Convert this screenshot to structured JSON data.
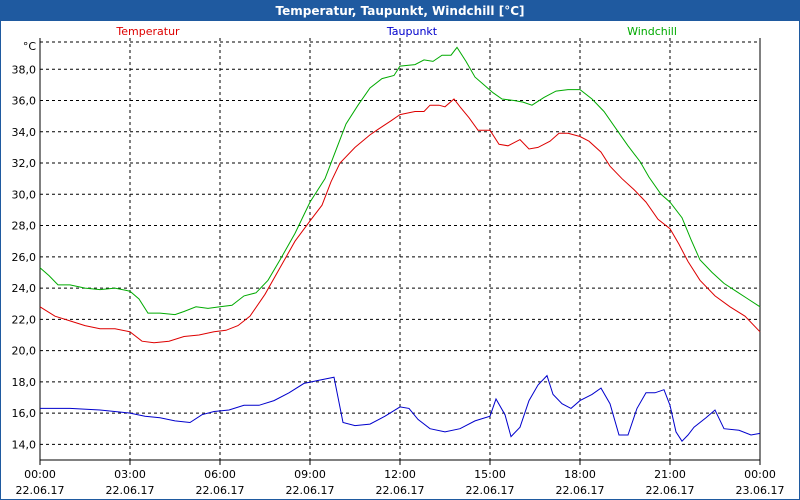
{
  "window": {
    "title": "Temperatur, Taupunkt, Windchill [°C]"
  },
  "chart_data": {
    "type": "line",
    "title": "Temperatur, Taupunkt, Windchill [°C]",
    "ylabel": "°C",
    "xlabel": "",
    "ylim": [
      13,
      40
    ],
    "xlim": [
      0,
      24
    ],
    "grid": true,
    "legend_position": "top",
    "yticks": [
      14,
      16,
      18,
      20,
      22,
      24,
      26,
      28,
      30,
      32,
      34,
      36,
      38
    ],
    "ytick_labels": [
      "14,0",
      "16,0",
      "18,0",
      "20,0",
      "22,0",
      "24,0",
      "26,0",
      "28,0",
      "30,0",
      "32,0",
      "34,0",
      "36,0",
      "38,0"
    ],
    "xticks": [
      {
        "time": "00:00",
        "date": "22.06.17"
      },
      {
        "time": "03:00",
        "date": "22.06.17"
      },
      {
        "time": "06:00",
        "date": "22.06.17"
      },
      {
        "time": "09:00",
        "date": "22.06.17"
      },
      {
        "time": "12:00",
        "date": "22.06.17"
      },
      {
        "time": "15:00",
        "date": "22.06.17"
      },
      {
        "time": "18:00",
        "date": "22.06.17"
      },
      {
        "time": "21:00",
        "date": "22.06.17"
      },
      {
        "time": "00:00",
        "date": "23.06.17"
      }
    ],
    "series": [
      {
        "name": "Temperatur",
        "color": "#dd0000",
        "points": [
          [
            0,
            22.8
          ],
          [
            0.5,
            22.2
          ],
          [
            1,
            21.9
          ],
          [
            1.5,
            21.6
          ],
          [
            2,
            21.4
          ],
          [
            2.5,
            21.4
          ],
          [
            3,
            21.2
          ],
          [
            3.4,
            20.6
          ],
          [
            3.8,
            20.5
          ],
          [
            4.3,
            20.6
          ],
          [
            4.8,
            20.9
          ],
          [
            5.3,
            21.0
          ],
          [
            5.8,
            21.2
          ],
          [
            6.2,
            21.3
          ],
          [
            6.6,
            21.6
          ],
          [
            7,
            22.2
          ],
          [
            7.5,
            23.6
          ],
          [
            8,
            25.3
          ],
          [
            8.5,
            27.0
          ],
          [
            9,
            28.3
          ],
          [
            9.4,
            29.3
          ],
          [
            9.7,
            30.8
          ],
          [
            10,
            32.0
          ],
          [
            10.5,
            33.0
          ],
          [
            11,
            33.8
          ],
          [
            11.3,
            34.2
          ],
          [
            11.7,
            34.7
          ],
          [
            12,
            35.1
          ],
          [
            12.5,
            35.3
          ],
          [
            12.8,
            35.3
          ],
          [
            13,
            35.7
          ],
          [
            13.3,
            35.7
          ],
          [
            13.5,
            35.6
          ],
          [
            13.8,
            36.1
          ],
          [
            14,
            35.6
          ],
          [
            14.3,
            34.9
          ],
          [
            14.6,
            34.1
          ],
          [
            15,
            34.1
          ],
          [
            15.3,
            33.2
          ],
          [
            15.6,
            33.1
          ],
          [
            16,
            33.5
          ],
          [
            16.3,
            32.9
          ],
          [
            16.6,
            33.0
          ],
          [
            17,
            33.4
          ],
          [
            17.3,
            33.9
          ],
          [
            17.6,
            33.9
          ],
          [
            18,
            33.7
          ],
          [
            18.3,
            33.4
          ],
          [
            18.7,
            32.7
          ],
          [
            19,
            31.8
          ],
          [
            19.4,
            31.0
          ],
          [
            19.8,
            30.3
          ],
          [
            20.2,
            29.5
          ],
          [
            20.6,
            28.4
          ],
          [
            21,
            27.8
          ],
          [
            21.3,
            26.8
          ],
          [
            21.6,
            25.7
          ],
          [
            22,
            24.5
          ],
          [
            22.5,
            23.5
          ],
          [
            23,
            22.8
          ],
          [
            23.5,
            22.2
          ],
          [
            24,
            21.2
          ]
        ]
      },
      {
        "name": "Taupunkt",
        "color": "#0000cc",
        "points": [
          [
            0,
            16.3
          ],
          [
            1,
            16.3
          ],
          [
            2,
            16.2
          ],
          [
            3,
            16.0
          ],
          [
            3.5,
            15.8
          ],
          [
            4,
            15.7
          ],
          [
            4.5,
            15.5
          ],
          [
            5,
            15.4
          ],
          [
            5.4,
            15.9
          ],
          [
            5.8,
            16.1
          ],
          [
            6.3,
            16.2
          ],
          [
            6.8,
            16.5
          ],
          [
            7.3,
            16.5
          ],
          [
            7.8,
            16.8
          ],
          [
            8.3,
            17.3
          ],
          [
            8.8,
            17.9
          ],
          [
            9.3,
            18.1
          ],
          [
            9.8,
            18.3
          ],
          [
            10.1,
            15.4
          ],
          [
            10.5,
            15.2
          ],
          [
            11,
            15.3
          ],
          [
            11.5,
            15.8
          ],
          [
            12,
            16.4
          ],
          [
            12.3,
            16.3
          ],
          [
            12.6,
            15.6
          ],
          [
            13,
            15.0
          ],
          [
            13.5,
            14.8
          ],
          [
            14,
            15.0
          ],
          [
            14.5,
            15.5
          ],
          [
            15,
            15.8
          ],
          [
            15.2,
            16.9
          ],
          [
            15.5,
            15.9
          ],
          [
            15.7,
            14.5
          ],
          [
            16,
            15.1
          ],
          [
            16.3,
            16.8
          ],
          [
            16.6,
            17.8
          ],
          [
            16.9,
            18.4
          ],
          [
            17.1,
            17.2
          ],
          [
            17.4,
            16.6
          ],
          [
            17.7,
            16.3
          ],
          [
            18,
            16.8
          ],
          [
            18.4,
            17.2
          ],
          [
            18.7,
            17.6
          ],
          [
            19,
            16.6
          ],
          [
            19.3,
            14.6
          ],
          [
            19.6,
            14.6
          ],
          [
            19.9,
            16.3
          ],
          [
            20.2,
            17.3
          ],
          [
            20.5,
            17.3
          ],
          [
            20.8,
            17.5
          ],
          [
            21,
            16.5
          ],
          [
            21.2,
            14.8
          ],
          [
            21.4,
            14.2
          ],
          [
            21.6,
            14.6
          ],
          [
            21.8,
            15.1
          ],
          [
            22.2,
            15.7
          ],
          [
            22.5,
            16.2
          ],
          [
            22.8,
            15.0
          ],
          [
            23.3,
            14.9
          ],
          [
            23.7,
            14.6
          ],
          [
            24,
            14.7
          ]
        ]
      },
      {
        "name": "Windchill",
        "color": "#00aa00",
        "points": [
          [
            0,
            25.3
          ],
          [
            0.3,
            24.8
          ],
          [
            0.6,
            24.2
          ],
          [
            1,
            24.2
          ],
          [
            1.5,
            24.0
          ],
          [
            2,
            23.9
          ],
          [
            2.5,
            24.0
          ],
          [
            3,
            23.8
          ],
          [
            3.3,
            23.3
          ],
          [
            3.6,
            22.4
          ],
          [
            4,
            22.4
          ],
          [
            4.5,
            22.3
          ],
          [
            4.8,
            22.5
          ],
          [
            5.2,
            22.8
          ],
          [
            5.6,
            22.7
          ],
          [
            6,
            22.8
          ],
          [
            6.4,
            22.9
          ],
          [
            6.8,
            23.5
          ],
          [
            7.2,
            23.7
          ],
          [
            7.6,
            24.5
          ],
          [
            8,
            25.8
          ],
          [
            8.5,
            27.5
          ],
          [
            9,
            29.5
          ],
          [
            9.5,
            31.0
          ],
          [
            9.8,
            32.5
          ],
          [
            10.2,
            34.5
          ],
          [
            10.6,
            35.7
          ],
          [
            11,
            36.8
          ],
          [
            11.4,
            37.4
          ],
          [
            11.8,
            37.6
          ],
          [
            12,
            38.2
          ],
          [
            12.5,
            38.3
          ],
          [
            12.8,
            38.6
          ],
          [
            13.1,
            38.5
          ],
          [
            13.4,
            38.9
          ],
          [
            13.7,
            38.9
          ],
          [
            13.9,
            39.4
          ],
          [
            14.2,
            38.5
          ],
          [
            14.5,
            37.5
          ],
          [
            14.8,
            37.0
          ],
          [
            15.1,
            36.5
          ],
          [
            15.4,
            36.1
          ],
          [
            15.8,
            36.0
          ],
          [
            16.1,
            35.9
          ],
          [
            16.4,
            35.7
          ],
          [
            16.8,
            36.2
          ],
          [
            17.2,
            36.6
          ],
          [
            17.6,
            36.7
          ],
          [
            18,
            36.7
          ],
          [
            18.4,
            36.1
          ],
          [
            18.8,
            35.3
          ],
          [
            19.2,
            34.2
          ],
          [
            19.6,
            33.1
          ],
          [
            20,
            32.1
          ],
          [
            20.3,
            31.1
          ],
          [
            20.7,
            30.0
          ],
          [
            21,
            29.5
          ],
          [
            21.4,
            28.5
          ],
          [
            21.7,
            27.1
          ],
          [
            22,
            25.8
          ],
          [
            22.4,
            25.0
          ],
          [
            22.8,
            24.3
          ],
          [
            23.2,
            23.8
          ],
          [
            23.6,
            23.3
          ],
          [
            24,
            22.8
          ]
        ]
      }
    ]
  }
}
